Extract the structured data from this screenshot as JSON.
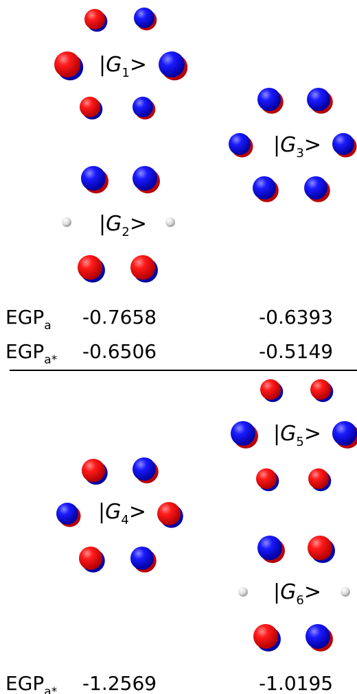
{
  "colors": {
    "lobe_red": "#e00000",
    "lobe_blue": "#0000d8",
    "hydrogen": "#d9d9d9",
    "divider": "#000000"
  },
  "orbitals": [
    {
      "id": "G1",
      "ket_prefix": "|",
      "symbol": "G",
      "index": "1",
      "ket_suffix": ">",
      "lobes": [
        "red",
        "blue",
        "red",
        "blue",
        "red",
        "blue"
      ]
    },
    {
      "id": "G2",
      "ket_prefix": "|",
      "symbol": "G",
      "index": "2",
      "ket_suffix": ">",
      "lobes": [
        "blue",
        "blue",
        "red",
        "red"
      ],
      "hydrogens": 2
    },
    {
      "id": "G3",
      "ket_prefix": "|",
      "symbol": "G",
      "index": "3",
      "ket_suffix": ">",
      "lobes": [
        "blue",
        "blue",
        "blue",
        "blue",
        "blue",
        "blue"
      ]
    },
    {
      "id": "G4",
      "ket_prefix": "|",
      "symbol": "G",
      "index": "4",
      "ket_suffix": ">",
      "lobes": [
        "red",
        "blue",
        "blue",
        "red",
        "red",
        "blue"
      ]
    },
    {
      "id": "G5",
      "ket_prefix": "|",
      "symbol": "G",
      "index": "5",
      "ket_suffix": ">",
      "lobes": [
        "red",
        "red",
        "blue",
        "blue",
        "red",
        "red"
      ]
    },
    {
      "id": "G6",
      "ket_prefix": "|",
      "symbol": "G",
      "index": "6",
      "ket_suffix": ">",
      "lobes": [
        "blue",
        "red",
        "red",
        "blue"
      ],
      "hydrogens": 2
    }
  ],
  "table_top": {
    "rows": [
      {
        "label_base": "EGP",
        "label_sub": "a",
        "left": "-0.7658",
        "right": "-0.6393"
      },
      {
        "label_base": "EGP",
        "label_sub": "a*",
        "left": "-0.6506",
        "right": "-0.5149"
      }
    ]
  },
  "table_bottom": {
    "rows": [
      {
        "label_base": "EGP",
        "label_sub": "a*",
        "left": "-1.2569",
        "right": "-1.0195"
      }
    ]
  }
}
